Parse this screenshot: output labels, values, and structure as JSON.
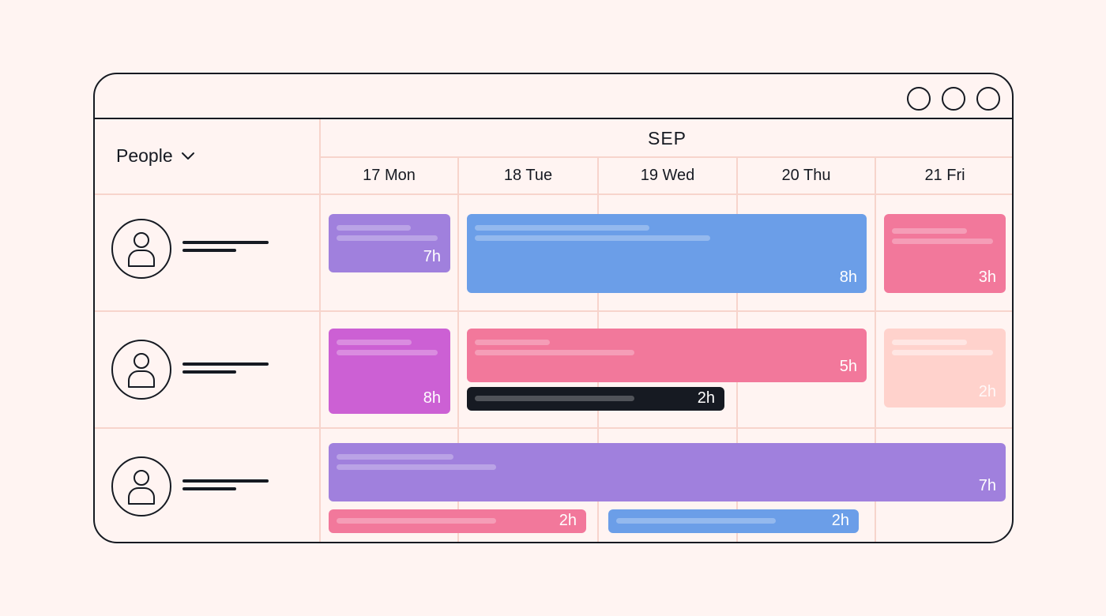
{
  "window": {
    "controls": [
      "circle-button",
      "circle-button",
      "circle-button"
    ]
  },
  "header": {
    "people_label": "People",
    "month": "SEP",
    "days": [
      "17 Mon",
      "18 Tue",
      "19 Wed",
      "20 Thu",
      "21 Fri"
    ]
  },
  "colors": {
    "background": "#fff4f2",
    "grid": "#f7d4cc",
    "outline": "#161a22",
    "purple": "#a080dd",
    "blue": "#6b9ee8",
    "pink": "#f2789b",
    "magenta": "#cc60d4",
    "dark": "#161a22",
    "light_pink": "#ffd2cc"
  },
  "rows": [
    {
      "tasks": [
        {
          "hours": "7h",
          "color": "purple"
        },
        {
          "hours": "8h",
          "color": "blue"
        },
        {
          "hours": "3h",
          "color": "pink"
        }
      ]
    },
    {
      "tasks": [
        {
          "hours": "8h",
          "color": "magenta"
        },
        {
          "hours": "5h",
          "color": "pink"
        },
        {
          "hours": "2h",
          "color": "dark"
        },
        {
          "hours": "2h",
          "color": "light_pink"
        }
      ]
    },
    {
      "tasks": [
        {
          "hours": "7h",
          "color": "purple"
        },
        {
          "hours": "2h",
          "color": "pink"
        },
        {
          "hours": "2h",
          "color": "blue"
        }
      ]
    }
  ]
}
